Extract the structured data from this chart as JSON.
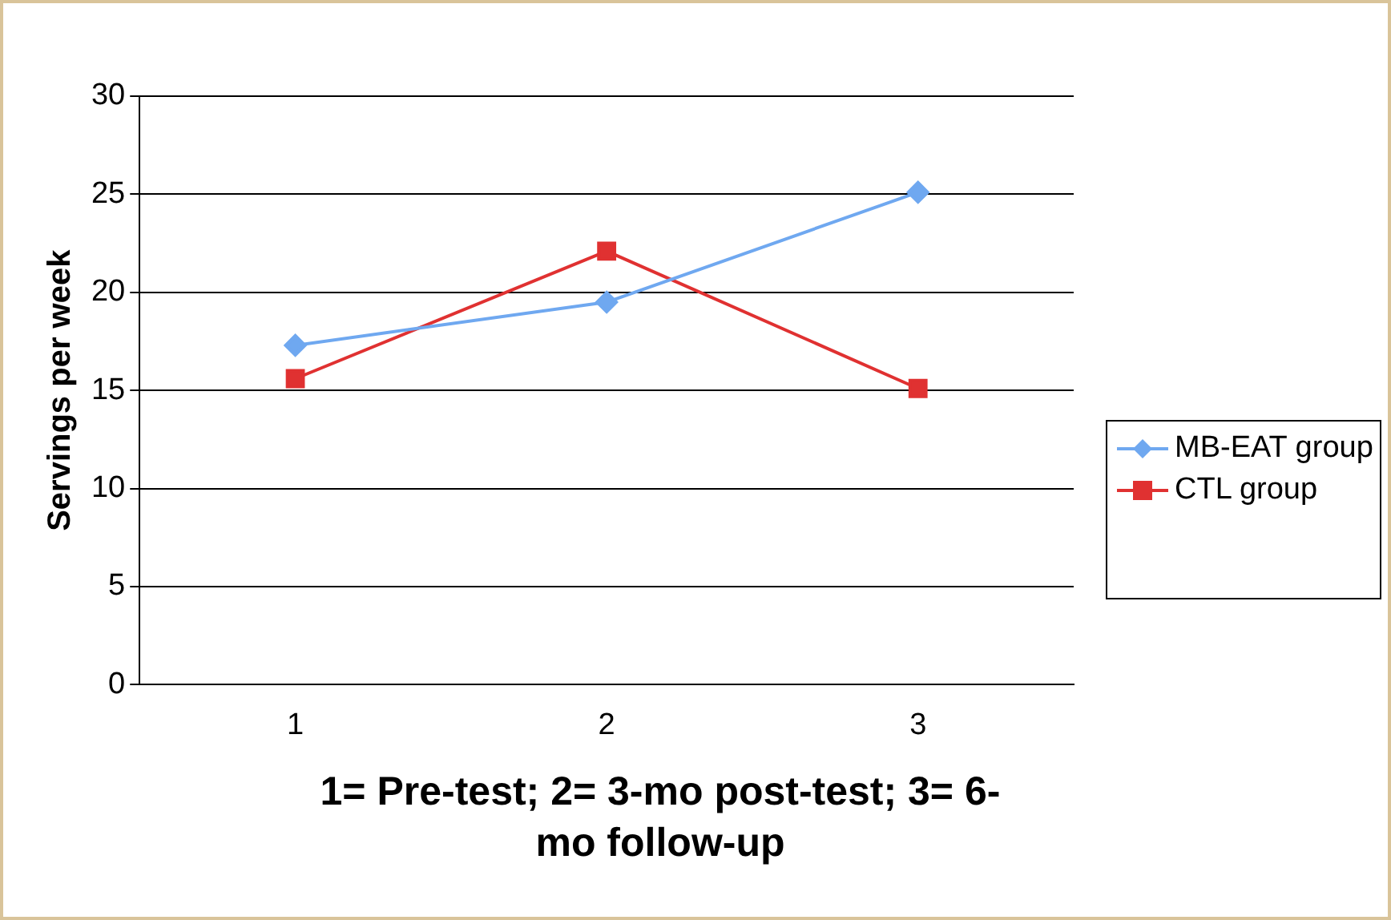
{
  "chart_data": {
    "type": "line",
    "xlabel": "1= Pre-test; 2= 3-mo post-test; 3= 6-mo follow-up",
    "ylabel": "Servings per week",
    "categories": [
      "1",
      "2",
      "3"
    ],
    "series": [
      {
        "name": "MB-EAT group",
        "color": "#6fa8f0",
        "values": [
          17.3,
          19.5,
          25.1
        ],
        "marker": "diamond"
      },
      {
        "name": "CTL group",
        "color": "#e03131",
        "values": [
          15.6,
          22.1,
          15.1
        ],
        "marker": "square"
      }
    ],
    "ylim": [
      0,
      30
    ],
    "yticks": [
      0,
      5,
      10,
      15,
      20,
      25,
      30
    ],
    "grid": "y",
    "legend": "right",
    "line_style": "solid"
  }
}
